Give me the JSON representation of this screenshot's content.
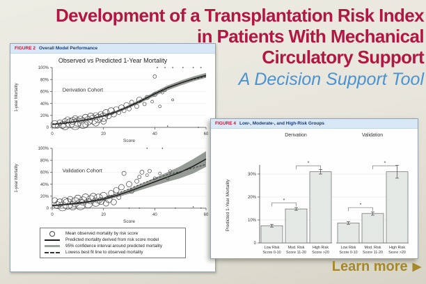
{
  "page": {
    "title_line1": "Development of a Transplantation Risk Index",
    "title_line2": "in Patients With Mechanical",
    "title_line3": "Circulatory Support",
    "subtitle": "A Decision Support Tool",
    "learn_more": "Learn more",
    "learn_more_arrow": "▶"
  },
  "colors": {
    "headline_red": "#b11742",
    "subtitle_blue": "#4a92d3",
    "learn_more_gold": "#a5882c",
    "figure_label_red": "#c41230",
    "figure_title_navy": "#1b3a70",
    "figure_header_bg": "#d9e8f6",
    "confidence_band_gray": "#8e958e",
    "bar_fill": "#e4e8e4",
    "background_beige": "#e7e5db"
  },
  "chart_data": [
    {
      "type": "scatter",
      "figure": "FIGURE 2",
      "figure_title": "Overall Model Performance",
      "title": "Observed vs Predicted 1-Year Mortality",
      "xlabel": "Score",
      "ylabel": "1-year Mortality",
      "xlim": [
        0,
        60
      ],
      "ylim": [
        0,
        100
      ],
      "grid": true,
      "xticks": [
        {
          "v": 0,
          "l": "0"
        },
        {
          "v": 20,
          "l": "20"
        },
        {
          "v": 40,
          "l": "40"
        },
        {
          "v": 60,
          "l": "60"
        }
      ],
      "yticks": [
        {
          "v": 0,
          "l": "0"
        },
        {
          "v": 20,
          "l": "20%"
        },
        {
          "v": 40,
          "l": "40%"
        },
        {
          "v": 60,
          "l": "60%"
        },
        {
          "v": 80,
          "l": "80%"
        },
        {
          "v": 100,
          "l": "100%"
        }
      ],
      "legend_position": "bottom",
      "legend": [
        {
          "symbol": "circle",
          "label": "Mean observed mortality by risk score"
        },
        {
          "symbol": "solid-line",
          "label": "Predicted mortality derived from risk score model"
        },
        {
          "symbol": "band",
          "label": "95% confidence interval around predicted mortality"
        },
        {
          "symbol": "dashed-line",
          "label": "Lowess best fit line to observed mortality"
        }
      ],
      "panels": [
        {
          "label": "Derivation Cohort",
          "predicted": [
            [
              0,
              5
            ],
            [
              5,
              7
            ],
            [
              10,
              10
            ],
            [
              15,
              14
            ],
            [
              20,
              19
            ],
            [
              25,
              26
            ],
            [
              30,
              35
            ],
            [
              35,
              45
            ],
            [
              40,
              56
            ],
            [
              45,
              66
            ],
            [
              50,
              74
            ],
            [
              55,
              81
            ],
            [
              60,
              87
            ]
          ],
          "band_halfwidth": [
            1,
            1,
            1.2,
            1.4,
            1.6,
            2,
            2.5,
            3,
            3.5,
            4,
            4,
            4,
            4
          ],
          "lowess": [
            [
              0,
              6
            ],
            [
              5,
              8
            ],
            [
              10,
              11
            ],
            [
              15,
              15
            ],
            [
              20,
              20
            ],
            [
              25,
              27
            ],
            [
              30,
              36
            ],
            [
              35,
              46
            ],
            [
              40,
              57
            ],
            [
              45,
              67
            ],
            [
              50,
              74
            ],
            [
              55,
              80
            ],
            [
              60,
              85
            ]
          ],
          "bubbles": [
            [
              1,
              5,
              5.5
            ],
            [
              2,
              2,
              3
            ],
            [
              3,
              8,
              4
            ],
            [
              4,
              4,
              5
            ],
            [
              5,
              10,
              4
            ],
            [
              5,
              3,
              6
            ],
            [
              6,
              13,
              4
            ],
            [
              7,
              7,
              6.5
            ],
            [
              8,
              11,
              5
            ],
            [
              9,
              5,
              7.5
            ],
            [
              9,
              15,
              4
            ],
            [
              10,
              9,
              6
            ],
            [
              11,
              13,
              5
            ],
            [
              12,
              7,
              7.5
            ],
            [
              13,
              16,
              5
            ],
            [
              13,
              4,
              4
            ],
            [
              14,
              11,
              6
            ],
            [
              15,
              18,
              5
            ],
            [
              16,
              13,
              6.5
            ],
            [
              17,
              8,
              5
            ],
            [
              17,
              20,
              4
            ],
            [
              18,
              15,
              6
            ],
            [
              19,
              22,
              4
            ],
            [
              20,
              17,
              6
            ],
            [
              20,
              10,
              4
            ],
            [
              21,
              24,
              5
            ],
            [
              22,
              19,
              4
            ],
            [
              23,
              27,
              5
            ],
            [
              24,
              22,
              4
            ],
            [
              25,
              30,
              4
            ],
            [
              26,
              25,
              3
            ],
            [
              27,
              33,
              4
            ],
            [
              28,
              28,
              3
            ],
            [
              29,
              37,
              4
            ],
            [
              30,
              31,
              3
            ],
            [
              31,
              42,
              3
            ],
            [
              33,
              35,
              3
            ],
            [
              34,
              46,
              4
            ],
            [
              36,
              39,
              2.5
            ],
            [
              37,
              50,
              3
            ],
            [
              39,
              43,
              2
            ],
            [
              40,
              55,
              3
            ],
            [
              42,
              35,
              2
            ],
            [
              43,
              58,
              2
            ],
            [
              44,
              62,
              2
            ],
            [
              40,
              85,
              2.5
            ],
            [
              47,
              46,
              1.5
            ]
          ],
          "dots": [
            [
              41,
              100
            ],
            [
              44,
              100
            ],
            [
              47,
              100
            ],
            [
              51,
              100
            ],
            [
              55,
              100
            ],
            [
              58,
              100
            ],
            [
              45,
              2
            ],
            [
              57,
              0
            ]
          ]
        },
        {
          "label": "Validation Cohort",
          "predicted": [
            [
              0,
              4
            ],
            [
              5,
              6
            ],
            [
              10,
              8
            ],
            [
              15,
              11
            ],
            [
              20,
              15
            ],
            [
              25,
              21
            ],
            [
              30,
              28
            ],
            [
              35,
              36
            ],
            [
              40,
              44
            ],
            [
              45,
              52
            ],
            [
              50,
              60
            ],
            [
              55,
              70
            ],
            [
              60,
              82
            ]
          ],
          "band_halfwidth": [
            1.5,
            1.5,
            2,
            2,
            2.5,
            3,
            4,
            5,
            6.5,
            8,
            10,
            12,
            13
          ],
          "lowess": [
            [
              0,
              5
            ],
            [
              5,
              7
            ],
            [
              10,
              9
            ],
            [
              15,
              12
            ],
            [
              20,
              17
            ],
            [
              25,
              24
            ],
            [
              30,
              32
            ],
            [
              35,
              41
            ],
            [
              40,
              49
            ],
            [
              45,
              56
            ],
            [
              50,
              61
            ],
            [
              55,
              67
            ],
            [
              60,
              73
            ]
          ],
          "bubbles": [
            [
              1,
              13,
              4
            ],
            [
              2,
              5,
              5
            ],
            [
              3,
              9,
              5.5
            ],
            [
              4,
              3,
              6.5
            ],
            [
              5,
              12,
              5
            ],
            [
              6,
              7,
              7.5
            ],
            [
              7,
              15,
              4
            ],
            [
              8,
              4,
              6
            ],
            [
              9,
              10,
              6.5
            ],
            [
              10,
              16,
              5
            ],
            [
              11,
              6,
              7.5
            ],
            [
              12,
              12,
              6
            ],
            [
              13,
              18,
              5
            ],
            [
              14,
              8,
              6.5
            ],
            [
              15,
              14,
              6
            ],
            [
              16,
              19,
              5
            ],
            [
              17,
              10,
              6
            ],
            [
              18,
              16,
              6.5
            ],
            [
              19,
              12,
              5
            ],
            [
              20,
              20,
              5.5
            ],
            [
              21,
              8,
              4
            ],
            [
              22,
              15,
              5
            ],
            [
              23,
              25,
              4
            ],
            [
              24,
              10,
              4
            ],
            [
              25,
              30,
              4
            ],
            [
              26,
              18,
              3
            ],
            [
              27,
              35,
              4
            ],
            [
              28,
              58,
              3
            ],
            [
              30,
              40,
              4
            ],
            [
              31,
              28,
              3
            ],
            [
              33,
              45,
              3
            ],
            [
              34,
              52,
              2.5
            ],
            [
              35,
              60,
              3
            ],
            [
              37,
              55,
              2
            ],
            [
              38,
              62,
              2.5
            ],
            [
              40,
              50,
              2
            ],
            [
              42,
              58,
              2
            ],
            [
              45,
              50,
              2
            ],
            [
              46,
              62,
              2
            ]
          ],
          "dots": [
            [
              37,
              100
            ],
            [
              43,
              100
            ],
            [
              30,
              0
            ],
            [
              34,
              0
            ],
            [
              48,
              0
            ],
            [
              55,
              2
            ],
            [
              58,
              0
            ]
          ]
        }
      ]
    },
    {
      "type": "bar",
      "figure": "FIGURE 4",
      "figure_title": "Low-, Moderate-, and High-Risk Groups",
      "ylabel": "Predicted 1-Year Mortality",
      "ylim": [
        0,
        36
      ],
      "grid": true,
      "yticks": [
        {
          "v": 0,
          "l": "0"
        },
        {
          "v": 10,
          "l": "10%"
        },
        {
          "v": 20,
          "l": "20%"
        },
        {
          "v": 30,
          "l": "30%"
        }
      ],
      "categories": [
        [
          "Low Risk",
          "Score 0-10"
        ],
        [
          "Mod. Risk",
          "Score 11-20"
        ],
        [
          "High Risk",
          "Score >20"
        ]
      ],
      "series": [
        {
          "name": "Derivation",
          "values": [
            7.5,
            14.8,
            31
          ],
          "errors": [
            0.6,
            0.6,
            1.0
          ]
        },
        {
          "name": "Validation",
          "values": [
            8.7,
            12.8,
            31
          ],
          "errors": [
            0.6,
            0.7,
            2.8
          ]
        }
      ],
      "brackets": [
        {
          "from": 0,
          "to": 1,
          "label": "*"
        },
        {
          "from": 1,
          "to": 2,
          "label": "*"
        }
      ]
    }
  ]
}
